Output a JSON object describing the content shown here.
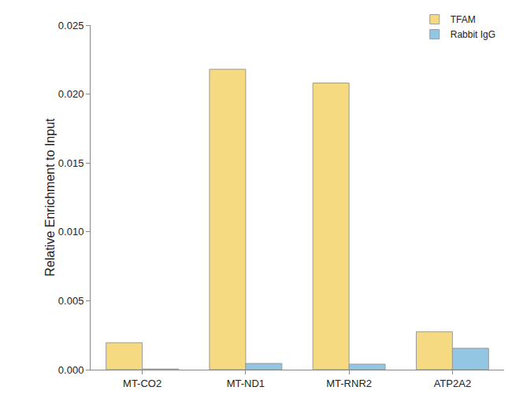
{
  "chart_data": {
    "type": "bar",
    "y_label": "Relative Enrichment to Input",
    "categories": [
      "MT-CO2",
      "MT-ND1",
      "MT-RNR2",
      "ATP2A2"
    ],
    "series": [
      {
        "name": "TFAM",
        "color": "#f6da82",
        "values": [
          0.00195,
          0.0218,
          0.0208,
          0.00275
        ]
      },
      {
        "name": "Rabbit IgG",
        "color": "#93c6e2",
        "values": [
          5e-05,
          0.00045,
          0.0004,
          0.00155
        ]
      }
    ],
    "ylim": [
      0,
      0.025
    ],
    "yticks": [
      {
        "value": 0,
        "label": "0.000"
      },
      0.005,
      {
        "value": 0.01,
        "label": "0.010"
      },
      0.015,
      {
        "value": 0.02,
        "label": "0.020"
      },
      0.025
    ],
    "grid": false,
    "legend": "top-right"
  }
}
